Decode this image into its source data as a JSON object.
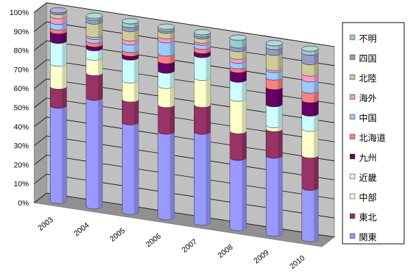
{
  "chart_data": {
    "type": "bar",
    "stacked": true,
    "percent_stacked": true,
    "style": "3d-cylinder",
    "title": "",
    "xlabel": "",
    "ylabel": "",
    "ylim": [
      0,
      100
    ],
    "y_ticks": [
      "0%",
      "10%",
      "20%",
      "30%",
      "40%",
      "50%",
      "60%",
      "70%",
      "80%",
      "90%",
      "100%"
    ],
    "grid": true,
    "legend_position": "right",
    "categories": [
      "2003",
      "2004",
      "2005",
      "2006",
      "2007",
      "2008",
      "2009",
      "2010"
    ],
    "series": [
      {
        "name": "関東",
        "color": "#9999ff",
        "values": [
          50,
          57,
          47,
          45,
          44,
          37,
          41,
          27
        ]
      },
      {
        "name": "東北",
        "color": "#993366",
        "values": [
          10,
          13,
          12,
          14,
          13,
          14,
          14,
          17
        ]
      },
      {
        "name": "中部",
        "color": "#ffffcc",
        "values": [
          12,
          8,
          10,
          10,
          13,
          17,
          2,
          14
        ]
      },
      {
        "name": "近畿",
        "color": "#ccffff",
        "values": [
          12,
          5,
          12,
          8,
          11,
          10,
          11,
          8
        ]
      },
      {
        "name": "九州",
        "color": "#660066",
        "values": [
          5,
          2,
          2,
          5,
          2,
          5,
          9,
          7
        ]
      },
      {
        "name": "北海道",
        "color": "#ff8080",
        "values": [
          2,
          2,
          2,
          4,
          2,
          2,
          5,
          5
        ]
      },
      {
        "name": "中国",
        "color": "#99ccff",
        "values": [
          3,
          2,
          4,
          7,
          2,
          3,
          4,
          6
        ]
      },
      {
        "name": "海外",
        "color": "#ff99cc",
        "values": [
          3,
          1,
          2,
          2,
          1,
          2,
          1,
          3
        ]
      },
      {
        "name": "北陸",
        "color": "#cccc99",
        "values": [
          2,
          7,
          5,
          3,
          2,
          4,
          8,
          6
        ]
      },
      {
        "name": "四国",
        "color": "#9999cc",
        "values": [
          1,
          2,
          2,
          1,
          1,
          2,
          3,
          5
        ]
      },
      {
        "name": "不明",
        "color": "#99cccc",
        "values": [
          0,
          1,
          2,
          1,
          1,
          4,
          2,
          2
        ]
      }
    ]
  }
}
